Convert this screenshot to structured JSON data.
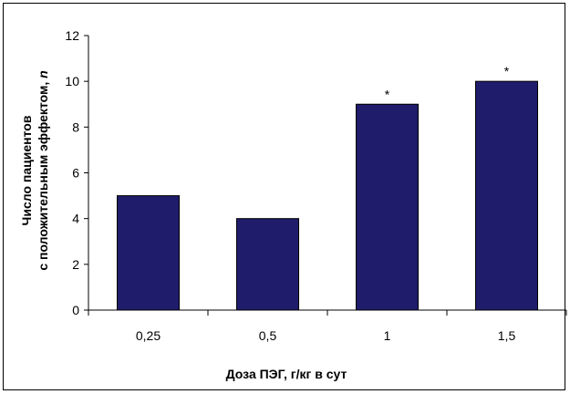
{
  "chart_data": {
    "type": "bar",
    "categories": [
      "0,25",
      "0,5",
      "1",
      "1,5"
    ],
    "values": [
      5,
      4,
      9,
      10
    ],
    "annotations": [
      "",
      "",
      "*",
      "*"
    ],
    "xlabel": "Доза ПЭГ, г/кг в сут",
    "ylabel_line1": "Число пациентов",
    "ylabel_line2_main": "с положительным эффектом, ",
    "ylabel_line2_italic": "n",
    "ylim": [
      0,
      12
    ],
    "yticks": [
      "0",
      "2",
      "4",
      "6",
      "8",
      "10",
      "12"
    ],
    "grid": false,
    "legend": "none",
    "bar_color": "#1f1c6b"
  }
}
